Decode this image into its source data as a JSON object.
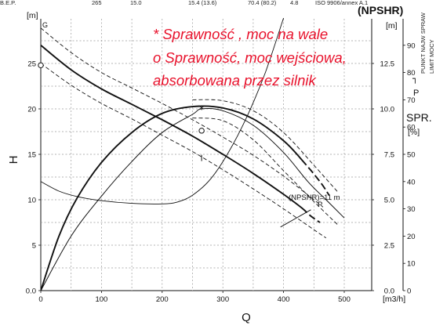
{
  "header_row": {
    "label": "B.E.P.",
    "values": [
      "265",
      "15.0",
      "15.4 (13.6)",
      "70.4 (80.2)",
      "4.8",
      "ISO 9906/annex A.1"
    ]
  },
  "npshr_header": "(NPSHR)",
  "side_labels": {
    "vertical_1": "PUNKT NAJW SPRAW",
    "vertical_2": "LIMIT MOCY",
    "mark_1": "┐",
    "mark_2": "P"
  },
  "annotations": {
    "line1": "* Sprawność , moc na wale",
    "line2": "o  Sprawność, moc wejściowa,",
    "line3": "absorbowana przez silnik",
    "npshr_curve": "(NPSHR)=11 m",
    "p_marker": "P",
    "g_marker": "G",
    "color": "#e8112b"
  },
  "chart_data": {
    "type": "line",
    "xlabel": "Q",
    "xunit": "[m3/h]",
    "ylabel": "H",
    "yunit": "[m]",
    "y2unit": "[m]",
    "y3label": "SPR.",
    "y3unit": "[%]",
    "xlim": [
      0,
      550
    ],
    "ylim": [
      0,
      30
    ],
    "y2lim": [
      0,
      15
    ],
    "y3lim": [
      0,
      100
    ],
    "xticks": [
      "0",
      "100",
      "200",
      "300",
      "400",
      "500"
    ],
    "yticks": [
      "0.0",
      "5",
      "10",
      "15",
      "20",
      "25"
    ],
    "y2ticks": [
      "0.0",
      "2.5",
      "5.0",
      "7.5",
      "10.0",
      "12.5"
    ],
    "y3ticks": [
      "0",
      "10",
      "20",
      "30",
      "40",
      "50",
      "60",
      "70",
      "80",
      "90"
    ],
    "grid": true,
    "series": [
      {
        "role": "head",
        "style": "solid",
        "axis": "H",
        "x": [
          0,
          50,
          100,
          150,
          200,
          250,
          300,
          350,
          400,
          430,
          445,
          460
        ],
        "y": [
          27.0,
          24.3,
          22.2,
          20.5,
          18.8,
          17.0,
          15.0,
          12.9,
          10.6,
          9.1,
          8.2,
          7.5
        ]
      },
      {
        "role": "head-upper-tolerance",
        "style": "dashed",
        "axis": "H",
        "x": [
          0,
          50,
          100,
          150,
          200,
          250,
          300,
          350,
          400,
          450,
          465
        ],
        "y": [
          28.9,
          26.2,
          24.0,
          22.3,
          20.6,
          18.8,
          16.9,
          14.9,
          12.6,
          10.0,
          9.2
        ]
      },
      {
        "role": "head-lower-tolerance",
        "style": "dashed",
        "axis": "H",
        "x": [
          0,
          50,
          100,
          150,
          200,
          250,
          300,
          350,
          400,
          450,
          470
        ],
        "y": [
          25.0,
          22.6,
          20.6,
          18.9,
          17.1,
          15.3,
          13.3,
          11.2,
          9.0,
          6.7,
          5.8
        ]
      },
      {
        "role": "efficiency",
        "style": "solid",
        "axis": "SPR",
        "x": [
          0,
          30,
          60,
          100,
          150,
          200,
          250,
          300,
          350,
          400,
          430,
          460,
          475
        ],
        "y": [
          0,
          20,
          34,
          47,
          58,
          65,
          67.5,
          67,
          63,
          55,
          48,
          40,
          35
        ]
      },
      {
        "role": "power",
        "style": "solid",
        "axis": "SPR",
        "x": [
          0,
          30,
          60,
          100,
          150,
          200,
          225,
          250,
          280,
          310,
          340,
          370,
          400,
          420
        ],
        "y": [
          40,
          36.5,
          34.5,
          33,
          32,
          31.8,
          32.5,
          35,
          41,
          51,
          64,
          80,
          100,
          115
        ]
      },
      {
        "role": "npshr",
        "style": "solid",
        "axis": "NPSH",
        "x": [
          0,
          50,
          100,
          150,
          200,
          250,
          265,
          300,
          350,
          400,
          440,
          470,
          500
        ],
        "y": [
          0,
          3.0,
          5.2,
          7.1,
          8.7,
          9.7,
          10.0,
          9.9,
          9.1,
          7.6,
          6.0,
          5.0,
          4.0
        ]
      },
      {
        "role": "npshr-upper-dashed",
        "style": "dashed",
        "axis": "NPSH",
        "x": [
          250,
          300,
          350,
          400,
          450,
          490
        ],
        "y": [
          10.5,
          10.45,
          9.9,
          8.7,
          6.9,
          5.4
        ]
      },
      {
        "role": "npshr-lower-dashed",
        "style": "dashed",
        "axis": "NPSH",
        "x": [
          250,
          300,
          350,
          400,
          450,
          490
        ],
        "y": [
          9.5,
          9.35,
          8.3,
          6.6,
          4.9,
          3.6
        ]
      },
      {
        "role": "npshr-11m-short",
        "style": "solid",
        "axis": "H",
        "x": [
          395,
          445
        ],
        "y": [
          7.0,
          8.9
        ]
      }
    ],
    "markers": [
      {
        "symbol": "*",
        "x": 265,
        "y": 10.0,
        "axis": "NPSH"
      },
      {
        "symbol": "o",
        "x": 265,
        "y": 17.6,
        "axis": "H"
      },
      {
        "symbol": "o",
        "x": 0,
        "y": 24.8,
        "axis": "H"
      },
      {
        "symbol": "tick",
        "x": 265,
        "y": 14.6,
        "axis": "H"
      }
    ]
  }
}
